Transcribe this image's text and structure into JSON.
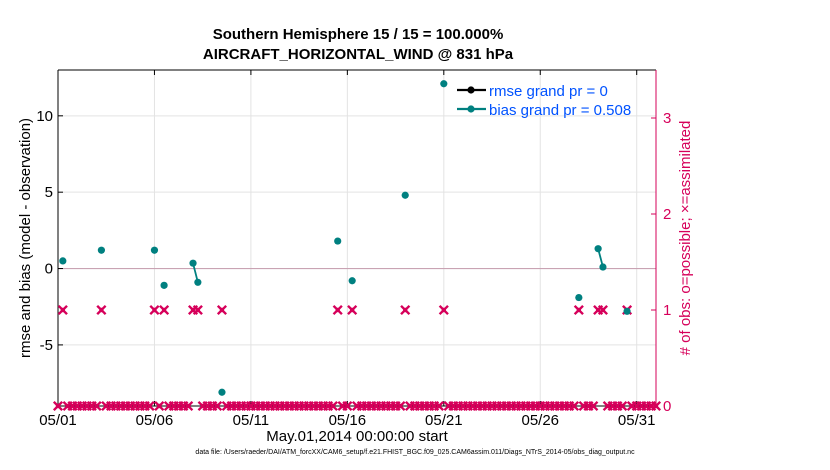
{
  "chart_data": {
    "type": "scatter",
    "title": "Southern Hemisphere 15 / 15 = 100.000%",
    "subtitle": "AIRCRAFT_HORIZONTAL_WIND @ 831 hPa",
    "xlabel": "May.01,2014 00:00:00 start",
    "ylabel": "rmse and bias (model - observation)",
    "y2label": "# of obs: o=possible; ×=assimilated",
    "xlim": [
      1,
      32
    ],
    "ylim": [
      -9,
      13
    ],
    "y2lim": [
      0,
      3.5
    ],
    "xticks": [
      1,
      6,
      11,
      16,
      21,
      26,
      31
    ],
    "x_tick_labels": [
      "05/01",
      "05/06",
      "05/11",
      "05/16",
      "05/21",
      "05/26",
      "05/31"
    ],
    "yticks": [
      -5,
      0,
      5,
      10
    ],
    "y_tick_labels": [
      "-5",
      "0",
      "5",
      "10"
    ],
    "y2ticks": [
      0,
      1,
      2,
      3
    ],
    "y2_tick_labels": [
      "0",
      "1",
      "2",
      "3"
    ],
    "grid": true,
    "legend_position": "top-right",
    "series": [
      {
        "name": "rmse grand pr = 0",
        "color": "#000000",
        "marker": "circle",
        "x": [],
        "y": []
      },
      {
        "name": "bias grand pr = 0.508",
        "color": "#008080",
        "marker": "circle",
        "x": [
          1.25,
          3.25,
          6.0,
          6.5,
          8.0,
          8.25,
          9.5,
          15.5,
          16.25,
          19.0,
          21.0,
          28.0,
          29.0,
          29.25,
          30.5
        ],
        "y": [
          0.5,
          1.2,
          1.2,
          -1.1,
          0.35,
          -0.9,
          -8.1,
          1.8,
          -0.8,
          4.8,
          12.1,
          -1.9,
          1.3,
          0.1,
          -2.8
        ]
      },
      {
        "name": "obs possible / assimilated",
        "color": "#d6005a",
        "marker": "x",
        "axis": "right",
        "x": [
          1.25,
          3.25,
          6.0,
          6.5,
          8.0,
          8.25,
          9.5,
          15.5,
          16.25,
          19.0,
          21.0,
          28.0,
          29.0,
          29.25,
          30.5
        ],
        "y": [
          1,
          1,
          1,
          1,
          1,
          1,
          1,
          1,
          1,
          1,
          1,
          1,
          1,
          1,
          1
        ],
        "zero_count_x_spacing": 0.25
      }
    ]
  },
  "footnote": "data file: /Users/raeder/DAI/ATM_forcXX/CAM6_setup/f.e21.FHIST_BGC.f09_025.CAM6assim.011/Diags_NTrS_2014-05/obs_diag_output.nc"
}
